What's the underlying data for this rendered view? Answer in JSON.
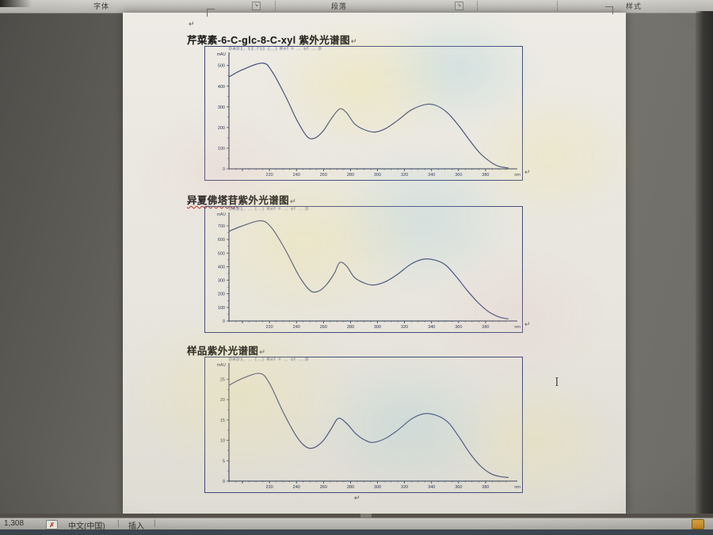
{
  "ribbon": {
    "groups": [
      {
        "label": "字体"
      },
      {
        "label": "段落"
      },
      {
        "label": "样式"
      }
    ],
    "launcher_glyph": "↘"
  },
  "document": {
    "paragraph_mark": "↵",
    "titles": {
      "t1": "芹菜素-6-C-glc-8-C-xyl 紫外光谱图",
      "t2_flagged": "异夏佛塔苷",
      "t2_rest": "紫外光谱图",
      "t3": "样品紫外光谱图"
    }
  },
  "chart_data": [
    {
      "type": "line",
      "title": "芹菜素-6-C-glc-8-C-xyl 紫外光谱图",
      "header_text": "DAD1, 12.711 (…) Ref = … of ….D",
      "ylabel": "mAU",
      "x_unit": "nm",
      "xlim": [
        190,
        400
      ],
      "ylim": [
        0,
        545
      ],
      "xticks": [
        220,
        240,
        260,
        280,
        300,
        320,
        340,
        360,
        380
      ],
      "yticks": [
        0,
        100,
        200,
        300,
        400,
        500
      ],
      "grid": false,
      "points": [
        [
          190,
          445
        ],
        [
          200,
          480
        ],
        [
          215,
          512
        ],
        [
          222,
          470
        ],
        [
          232,
          350
        ],
        [
          240,
          240
        ],
        [
          248,
          155
        ],
        [
          254,
          150
        ],
        [
          260,
          185
        ],
        [
          266,
          245
        ],
        [
          272,
          290
        ],
        [
          277,
          272
        ],
        [
          283,
          218
        ],
        [
          290,
          190
        ],
        [
          298,
          178
        ],
        [
          306,
          195
        ],
        [
          315,
          235
        ],
        [
          325,
          285
        ],
        [
          336,
          312
        ],
        [
          344,
          305
        ],
        [
          352,
          270
        ],
        [
          360,
          210
        ],
        [
          368,
          140
        ],
        [
          376,
          75
        ],
        [
          384,
          32
        ],
        [
          390,
          12
        ],
        [
          397,
          4
        ]
      ]
    },
    {
      "type": "line",
      "title": "异夏佛塔苷紫外光谱图",
      "header_text": "DAD1, … (…) Ref = … of ….D",
      "ylabel": "mAU",
      "x_unit": "nm",
      "xlim": [
        190,
        400
      ],
      "ylim": [
        0,
        770
      ],
      "xticks": [
        220,
        240,
        260,
        280,
        300,
        320,
        340,
        360,
        380
      ],
      "yticks": [
        0,
        100,
        200,
        300,
        400,
        500,
        600,
        700
      ],
      "grid": false,
      "points": [
        [
          190,
          660
        ],
        [
          200,
          700
        ],
        [
          214,
          738
        ],
        [
          222,
          680
        ],
        [
          232,
          520
        ],
        [
          242,
          330
        ],
        [
          250,
          225
        ],
        [
          256,
          218
        ],
        [
          262,
          265
        ],
        [
          268,
          350
        ],
        [
          272,
          430
        ],
        [
          277,
          405
        ],
        [
          283,
          320
        ],
        [
          290,
          280
        ],
        [
          297,
          265
        ],
        [
          306,
          290
        ],
        [
          315,
          345
        ],
        [
          325,
          420
        ],
        [
          334,
          455
        ],
        [
          342,
          450
        ],
        [
          350,
          415
        ],
        [
          358,
          330
        ],
        [
          366,
          230
        ],
        [
          374,
          140
        ],
        [
          382,
          70
        ],
        [
          390,
          30
        ],
        [
          397,
          15
        ]
      ]
    },
    {
      "type": "line",
      "title": "样品紫外光谱图",
      "header_text": "DAD1, … (…) Ref = … of ….D",
      "ylabel": "mAU",
      "x_unit": "nm",
      "xlim": [
        190,
        400
      ],
      "ylim": [
        0,
        28
      ],
      "xticks": [
        220,
        240,
        260,
        280,
        300,
        320,
        340,
        360,
        380
      ],
      "yticks": [
        0,
        5,
        10,
        15,
        20,
        25
      ],
      "grid": false,
      "points": [
        [
          190,
          23.5
        ],
        [
          200,
          25.2
        ],
        [
          213,
          26.4
        ],
        [
          220,
          24
        ],
        [
          230,
          17
        ],
        [
          240,
          11
        ],
        [
          247,
          8.4
        ],
        [
          253,
          8.2
        ],
        [
          260,
          10
        ],
        [
          266,
          13
        ],
        [
          271,
          15.4
        ],
        [
          277,
          14.2
        ],
        [
          284,
          11.6
        ],
        [
          291,
          10
        ],
        [
          297,
          9.5
        ],
        [
          306,
          10.5
        ],
        [
          315,
          12.5
        ],
        [
          325,
          15.2
        ],
        [
          334,
          16.5
        ],
        [
          343,
          16.2
        ],
        [
          352,
          14.5
        ],
        [
          360,
          11
        ],
        [
          368,
          7
        ],
        [
          376,
          3.8
        ],
        [
          384,
          1.8
        ],
        [
          391,
          1.1
        ],
        [
          397,
          0.9
        ]
      ]
    }
  ],
  "status_bar": {
    "word_count": "1,308",
    "language": "中文(中国)",
    "mode": "插入",
    "separator": "|",
    "spell_error_glyph": "✗"
  },
  "pointer": {
    "ibeam_glyph": "I"
  },
  "colors": {
    "curve": "#44517a",
    "axis": "#2c3550",
    "title_text": "#1f1f1f",
    "proofing_underline": "#c0392b",
    "taskbar_icon_orange": "#d79a2e"
  }
}
